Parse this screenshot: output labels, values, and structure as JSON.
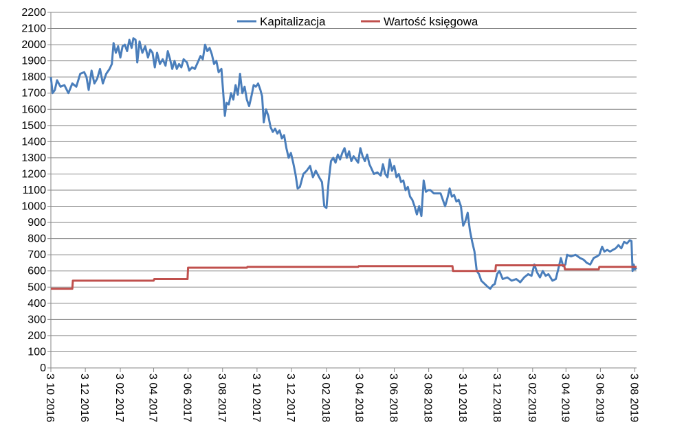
{
  "chart_data": {
    "type": "line",
    "title": "",
    "xlabel": "",
    "ylabel": "",
    "ylim": [
      0,
      2200
    ],
    "y_ticks": [
      0,
      100,
      200,
      300,
      400,
      500,
      600,
      700,
      800,
      900,
      1000,
      1100,
      1200,
      1300,
      1400,
      1500,
      1600,
      1700,
      1800,
      1900,
      2000,
      2100,
      2200
    ],
    "x_range": [
      "2016-10-03",
      "2019-08-06"
    ],
    "x_tick_labels": [
      "3 10 2016",
      "3 12 2016",
      "3 02 2017",
      "3 04 2017",
      "3 06 2017",
      "3 08 2017",
      "3 10 2017",
      "3 12 2017",
      "3 02 2018",
      "3 04 2018",
      "3 06 2018",
      "3 08 2018",
      "3 10 2018",
      "3 12 2018",
      "3 02 2019",
      "3 04 2019",
      "3 06 2019",
      "3 08 2019"
    ],
    "x_tick_dates": [
      "2016-10-03",
      "2016-12-03",
      "2017-02-03",
      "2017-04-03",
      "2017-06-03",
      "2017-08-03",
      "2017-10-03",
      "2017-12-03",
      "2018-02-03",
      "2018-04-03",
      "2018-06-03",
      "2018-08-03",
      "2018-10-03",
      "2018-12-03",
      "2019-02-03",
      "2019-04-03",
      "2019-06-03",
      "2019-08-03"
    ],
    "grid": "horizontal",
    "legend_position": "top-center",
    "series": [
      {
        "name": "Kapitalizacja",
        "color": "#4a7ebb",
        "points": [
          [
            "2016-10-03",
            1800
          ],
          [
            "2016-10-06",
            1700
          ],
          [
            "2016-10-10",
            1720
          ],
          [
            "2016-10-14",
            1780
          ],
          [
            "2016-10-20",
            1740
          ],
          [
            "2016-10-27",
            1750
          ],
          [
            "2016-11-03",
            1700
          ],
          [
            "2016-11-10",
            1760
          ],
          [
            "2016-11-17",
            1740
          ],
          [
            "2016-11-24",
            1820
          ],
          [
            "2016-12-01",
            1830
          ],
          [
            "2016-12-05",
            1800
          ],
          [
            "2016-12-09",
            1720
          ],
          [
            "2016-12-14",
            1840
          ],
          [
            "2016-12-19",
            1760
          ],
          [
            "2016-12-24",
            1790
          ],
          [
            "2016-12-29",
            1850
          ],
          [
            "2017-01-03",
            1760
          ],
          [
            "2017-01-09",
            1820
          ],
          [
            "2017-01-15",
            1850
          ],
          [
            "2017-01-19",
            1880
          ],
          [
            "2017-01-22",
            2010
          ],
          [
            "2017-01-26",
            1950
          ],
          [
            "2017-01-30",
            1990
          ],
          [
            "2017-02-03",
            1920
          ],
          [
            "2017-02-07",
            1990
          ],
          [
            "2017-02-11",
            2000
          ],
          [
            "2017-02-15",
            1960
          ],
          [
            "2017-02-19",
            2030
          ],
          [
            "2017-02-23",
            1980
          ],
          [
            "2017-02-26",
            2040
          ],
          [
            "2017-03-02",
            2030
          ],
          [
            "2017-03-05",
            1890
          ],
          [
            "2017-03-09",
            2020
          ],
          [
            "2017-03-14",
            1950
          ],
          [
            "2017-03-19",
            1990
          ],
          [
            "2017-03-24",
            1920
          ],
          [
            "2017-03-28",
            1970
          ],
          [
            "2017-04-01",
            1950
          ],
          [
            "2017-04-05",
            1860
          ],
          [
            "2017-04-09",
            1950
          ],
          [
            "2017-04-14",
            1880
          ],
          [
            "2017-04-19",
            1910
          ],
          [
            "2017-04-24",
            1870
          ],
          [
            "2017-04-28",
            1960
          ],
          [
            "2017-05-02",
            1910
          ],
          [
            "2017-05-06",
            1850
          ],
          [
            "2017-05-10",
            1900
          ],
          [
            "2017-05-14",
            1850
          ],
          [
            "2017-05-18",
            1880
          ],
          [
            "2017-05-22",
            1860
          ],
          [
            "2017-05-26",
            1910
          ],
          [
            "2017-06-01",
            1890
          ],
          [
            "2017-06-05",
            1840
          ],
          [
            "2017-06-10",
            1860
          ],
          [
            "2017-06-15",
            1850
          ],
          [
            "2017-06-20",
            1890
          ],
          [
            "2017-06-25",
            1930
          ],
          [
            "2017-06-29",
            1910
          ],
          [
            "2017-07-03",
            2000
          ],
          [
            "2017-07-07",
            1960
          ],
          [
            "2017-07-11",
            1980
          ],
          [
            "2017-07-15",
            1940
          ],
          [
            "2017-07-19",
            1880
          ],
          [
            "2017-07-23",
            1900
          ],
          [
            "2017-07-27",
            1830
          ],
          [
            "2017-08-01",
            1850
          ],
          [
            "2017-08-04",
            1710
          ],
          [
            "2017-08-07",
            1560
          ],
          [
            "2017-08-10",
            1640
          ],
          [
            "2017-08-14",
            1630
          ],
          [
            "2017-08-18",
            1700
          ],
          [
            "2017-08-22",
            1660
          ],
          [
            "2017-08-26",
            1750
          ],
          [
            "2017-08-30",
            1690
          ],
          [
            "2017-09-03",
            1820
          ],
          [
            "2017-09-07",
            1700
          ],
          [
            "2017-09-11",
            1740
          ],
          [
            "2017-09-15",
            1660
          ],
          [
            "2017-09-19",
            1620
          ],
          [
            "2017-09-23",
            1680
          ],
          [
            "2017-09-27",
            1750
          ],
          [
            "2017-10-01",
            1740
          ],
          [
            "2017-10-05",
            1760
          ],
          [
            "2017-10-09",
            1720
          ],
          [
            "2017-10-12",
            1680
          ],
          [
            "2017-10-15",
            1520
          ],
          [
            "2017-10-19",
            1600
          ],
          [
            "2017-10-23",
            1560
          ],
          [
            "2017-10-27",
            1490
          ],
          [
            "2017-10-31",
            1460
          ],
          [
            "2017-11-04",
            1480
          ],
          [
            "2017-11-08",
            1450
          ],
          [
            "2017-11-12",
            1470
          ],
          [
            "2017-11-16",
            1420
          ],
          [
            "2017-11-20",
            1440
          ],
          [
            "2017-11-24",
            1360
          ],
          [
            "2017-11-28",
            1300
          ],
          [
            "2017-12-02",
            1330
          ],
          [
            "2017-12-06",
            1270
          ],
          [
            "2017-12-10",
            1200
          ],
          [
            "2017-12-14",
            1110
          ],
          [
            "2017-12-18",
            1120
          ],
          [
            "2017-12-24",
            1200
          ],
          [
            "2017-12-30",
            1220
          ],
          [
            "2018-01-05",
            1250
          ],
          [
            "2018-01-10",
            1180
          ],
          [
            "2018-01-15",
            1220
          ],
          [
            "2018-01-21",
            1180
          ],
          [
            "2018-01-26",
            1150
          ],
          [
            "2018-01-30",
            1000
          ],
          [
            "2018-02-03",
            990
          ],
          [
            "2018-02-07",
            1160
          ],
          [
            "2018-02-11",
            1280
          ],
          [
            "2018-02-15",
            1300
          ],
          [
            "2018-02-19",
            1270
          ],
          [
            "2018-02-23",
            1320
          ],
          [
            "2018-02-27",
            1290
          ],
          [
            "2018-03-03",
            1330
          ],
          [
            "2018-03-07",
            1360
          ],
          [
            "2018-03-11",
            1300
          ],
          [
            "2018-03-15",
            1340
          ],
          [
            "2018-03-19",
            1280
          ],
          [
            "2018-03-23",
            1310
          ],
          [
            "2018-03-27",
            1290
          ],
          [
            "2018-03-31",
            1270
          ],
          [
            "2018-04-04",
            1360
          ],
          [
            "2018-04-08",
            1310
          ],
          [
            "2018-04-12",
            1280
          ],
          [
            "2018-04-16",
            1320
          ],
          [
            "2018-04-20",
            1260
          ],
          [
            "2018-04-24",
            1230
          ],
          [
            "2018-04-28",
            1200
          ],
          [
            "2018-05-04",
            1210
          ],
          [
            "2018-05-10",
            1190
          ],
          [
            "2018-05-14",
            1260
          ],
          [
            "2018-05-18",
            1200
          ],
          [
            "2018-05-22",
            1180
          ],
          [
            "2018-05-26",
            1290
          ],
          [
            "2018-05-30",
            1220
          ],
          [
            "2018-06-03",
            1250
          ],
          [
            "2018-06-07",
            1180
          ],
          [
            "2018-06-11",
            1200
          ],
          [
            "2018-06-15",
            1150
          ],
          [
            "2018-06-19",
            1160
          ],
          [
            "2018-06-23",
            1100
          ],
          [
            "2018-06-27",
            1120
          ],
          [
            "2018-07-01",
            1060
          ],
          [
            "2018-07-05",
            1040
          ],
          [
            "2018-07-09",
            1000
          ],
          [
            "2018-07-13",
            950
          ],
          [
            "2018-07-17",
            1000
          ],
          [
            "2018-07-21",
            940
          ],
          [
            "2018-07-25",
            1160
          ],
          [
            "2018-07-29",
            1090
          ],
          [
            "2018-08-02",
            1100
          ],
          [
            "2018-08-06",
            1100
          ],
          [
            "2018-08-12",
            1080
          ],
          [
            "2018-08-18",
            1080
          ],
          [
            "2018-08-24",
            1080
          ],
          [
            "2018-08-28",
            1040
          ],
          [
            "2018-09-01",
            1000
          ],
          [
            "2018-09-05",
            1050
          ],
          [
            "2018-09-09",
            1110
          ],
          [
            "2018-09-13",
            1060
          ],
          [
            "2018-09-17",
            1070
          ],
          [
            "2018-09-21",
            1030
          ],
          [
            "2018-09-25",
            1040
          ],
          [
            "2018-09-29",
            1000
          ],
          [
            "2018-10-03",
            880
          ],
          [
            "2018-10-07",
            910
          ],
          [
            "2018-10-11",
            960
          ],
          [
            "2018-10-15",
            850
          ],
          [
            "2018-10-19",
            780
          ],
          [
            "2018-10-23",
            720
          ],
          [
            "2018-10-27",
            600
          ],
          [
            "2018-10-31",
            580
          ],
          [
            "2018-11-04",
            540
          ],
          [
            "2018-11-10",
            520
          ],
          [
            "2018-11-16",
            500
          ],
          [
            "2018-11-20",
            490
          ],
          [
            "2018-11-24",
            510
          ],
          [
            "2018-11-28",
            520
          ],
          [
            "2018-12-02",
            580
          ],
          [
            "2018-12-06",
            600
          ],
          [
            "2018-12-12",
            550
          ],
          [
            "2018-12-20",
            560
          ],
          [
            "2018-12-28",
            540
          ],
          [
            "2019-01-05",
            550
          ],
          [
            "2019-01-12",
            530
          ],
          [
            "2019-01-19",
            560
          ],
          [
            "2019-01-26",
            580
          ],
          [
            "2019-02-01",
            570
          ],
          [
            "2019-02-06",
            640
          ],
          [
            "2019-02-11",
            590
          ],
          [
            "2019-02-16",
            560
          ],
          [
            "2019-02-21",
            600
          ],
          [
            "2019-02-26",
            570
          ],
          [
            "2019-03-03",
            580
          ],
          [
            "2019-03-10",
            540
          ],
          [
            "2019-03-16",
            550
          ],
          [
            "2019-03-21",
            620
          ],
          [
            "2019-03-25",
            680
          ],
          [
            "2019-03-29",
            630
          ],
          [
            "2019-04-02",
            640
          ],
          [
            "2019-04-05",
            700
          ],
          [
            "2019-04-12",
            690
          ],
          [
            "2019-04-20",
            700
          ],
          [
            "2019-04-28",
            680
          ],
          [
            "2019-05-04",
            670
          ],
          [
            "2019-05-10",
            650
          ],
          [
            "2019-05-16",
            640
          ],
          [
            "2019-05-22",
            680
          ],
          [
            "2019-05-28",
            690
          ],
          [
            "2019-06-01",
            700
          ],
          [
            "2019-06-06",
            750
          ],
          [
            "2019-06-10",
            720
          ],
          [
            "2019-06-15",
            730
          ],
          [
            "2019-06-20",
            720
          ],
          [
            "2019-06-25",
            730
          ],
          [
            "2019-06-30",
            740
          ],
          [
            "2019-07-05",
            760
          ],
          [
            "2019-07-10",
            740
          ],
          [
            "2019-07-15",
            780
          ],
          [
            "2019-07-20",
            770
          ],
          [
            "2019-07-25",
            790
          ],
          [
            "2019-07-28",
            785
          ],
          [
            "2019-07-30",
            600
          ],
          [
            "2019-08-01",
            640
          ],
          [
            "2019-08-03",
            610
          ],
          [
            "2019-08-06",
            620
          ]
        ]
      },
      {
        "name": "Wartość księgowa",
        "color": "#c0504d",
        "points": [
          [
            "2016-10-03",
            490
          ],
          [
            "2016-11-10",
            490
          ],
          [
            "2016-11-11",
            540
          ],
          [
            "2017-04-03",
            540
          ],
          [
            "2017-04-04",
            550
          ],
          [
            "2017-06-02",
            550
          ],
          [
            "2017-06-03",
            620
          ],
          [
            "2017-09-15",
            620
          ],
          [
            "2017-09-16",
            625
          ],
          [
            "2018-03-31",
            625
          ],
          [
            "2018-04-01",
            630
          ],
          [
            "2018-09-14",
            630
          ],
          [
            "2018-09-15",
            600
          ],
          [
            "2018-11-29",
            600
          ],
          [
            "2018-11-30",
            635
          ],
          [
            "2019-03-31",
            635
          ],
          [
            "2019-04-01",
            610
          ],
          [
            "2019-05-31",
            610
          ],
          [
            "2019-06-01",
            625
          ],
          [
            "2019-08-06",
            625
          ]
        ]
      }
    ]
  }
}
